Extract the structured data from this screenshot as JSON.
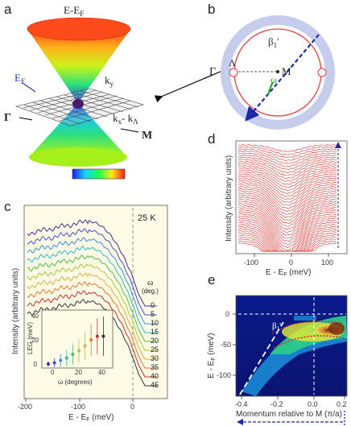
{
  "panels": {
    "a": {
      "letter": "a",
      "axis_top": "E-E",
      "axis_top_sub": "F",
      "ef_label": "E",
      "ef_sub": "F",
      "ky_label": "k",
      "ky_sub": "y",
      "kx_label": "k",
      "kx_sub": "x",
      "kx_minus": "- k",
      "kx_minus_sub": "Λ",
      "gamma": "Γ",
      "m": "M"
    },
    "b": {
      "letter": "b",
      "beta": "β",
      "beta_sub": "1",
      "beta_prime": "'",
      "gamma": "Γ",
      "lambda": "Λ",
      "m": "M",
      "omega": "ω"
    },
    "c": {
      "letter": "c",
      "temp": "25 K",
      "ylabel": "Intensity (arbitrary units)",
      "xlabel": "E - E",
      "xlabel_sub": "F",
      "xlabel_unit": " (meV)",
      "xticks": [
        "-200",
        "-100",
        "0"
      ],
      "omega_head": "ω",
      "omega_unit": "(deg.)",
      "omega_values": [
        "0",
        "5",
        "10",
        "15",
        "20",
        "25",
        "30",
        "35",
        "40",
        "45"
      ],
      "curve_colors": [
        "#4b2b8f",
        "#3d4fd6",
        "#3a8de0",
        "#2fb5c8",
        "#4cc04a",
        "#a6c93a",
        "#d9b23a",
        "#e07a2e",
        "#cc2b2b",
        "#333333"
      ],
      "inset": {
        "ylabel": "LEG (meV)",
        "xlabel": "ω (degrees)",
        "yticks": [
          "0",
          "20",
          "40"
        ],
        "xticks": [
          "0",
          "20",
          "40"
        ]
      }
    },
    "d": {
      "letter": "d",
      "ylabel": "Intensity (arbitrary units)",
      "xlabel": "E - E",
      "xlabel_sub": "F",
      "xlabel_unit": " (meV)",
      "xticks": [
        "-100",
        "0",
        "100"
      ]
    },
    "e": {
      "letter": "e",
      "ylabel": "E - E",
      "ylabel_sub": "F",
      "ylabel_unit": " (meV)",
      "yticks": [
        "0",
        "-50",
        "-100"
      ],
      "xticks": [
        "-0.4",
        "-0.2",
        "0.0",
        "0.2"
      ],
      "xlabel": "Momentum relative to M (π/a)",
      "beta_label": "β",
      "beta_sub": "1",
      "beta_prime": "'"
    }
  },
  "chart_data": [
    {
      "type": "line",
      "panel": "c",
      "xlabel": "E - EF (meV)",
      "ylabel": "Intensity (arbitrary units)",
      "xlim": [
        -200,
        20
      ],
      "series_labels_omega_deg": [
        0,
        5,
        10,
        15,
        20,
        25,
        30,
        35,
        40,
        45
      ]
    },
    {
      "type": "scatter",
      "panel": "c-inset",
      "xlabel": "ω (degrees)",
      "ylabel": "LEG (meV)",
      "x": [
        0,
        5,
        10,
        15,
        20,
        25,
        30,
        35,
        40,
        45
      ],
      "y": [
        0,
        1,
        3,
        5,
        8,
        11,
        15,
        20,
        23,
        23
      ],
      "xlim": [
        0,
        50
      ],
      "ylim": [
        0,
        40
      ]
    },
    {
      "type": "line",
      "panel": "d",
      "xlabel": "E - EF (meV)",
      "ylabel": "Intensity (arbitrary units)",
      "xlim": [
        -150,
        150
      ]
    },
    {
      "type": "heatmap",
      "panel": "e",
      "xlabel": "Momentum relative to M (π/a)",
      "ylabel": "E - EF (meV)",
      "xlim": [
        -0.45,
        0.25
      ],
      "ylim": [
        -120,
        10
      ]
    }
  ]
}
